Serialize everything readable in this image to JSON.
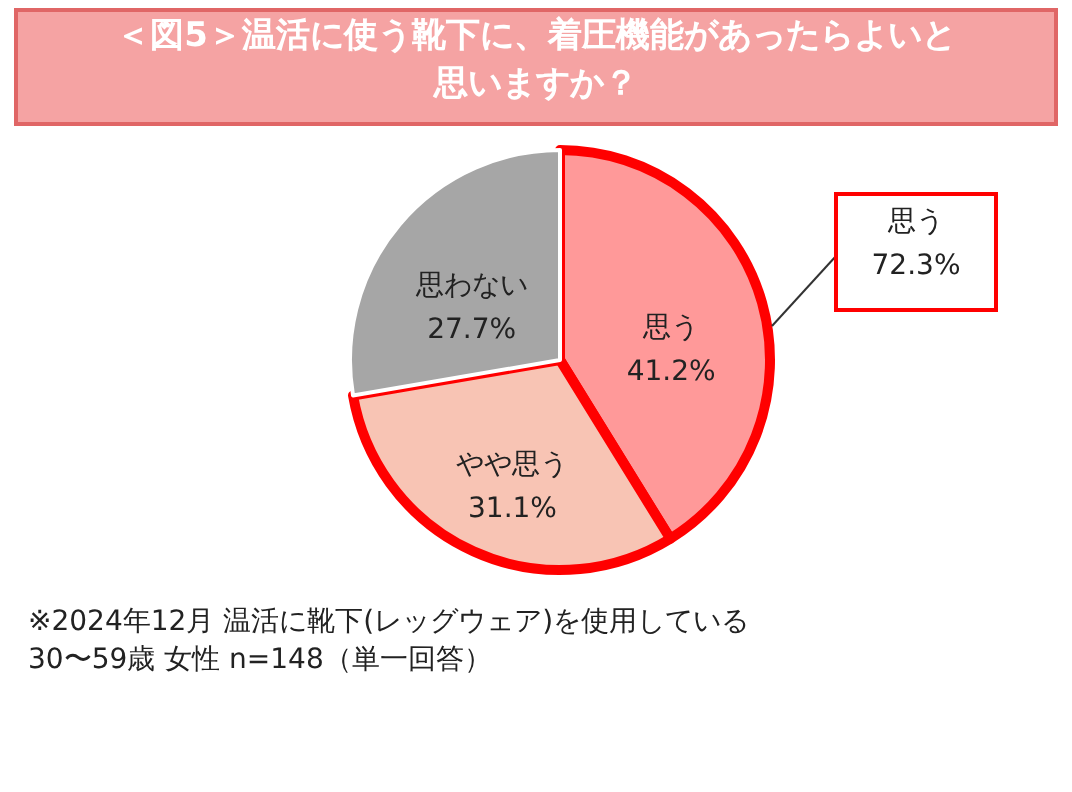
{
  "chart_data": {
    "type": "pie",
    "title": "＜図5＞温活に使う靴下に、着圧機能があったらよいと思いますか？",
    "categories": [
      "思う",
      "やや思う",
      "思わない"
    ],
    "values": [
      41.2,
      31.1,
      27.7
    ],
    "value_labels": [
      "41.2%",
      "31.1%",
      "27.7%"
    ],
    "colors": [
      "#ff9999",
      "#f8c4b4",
      "#a6a6a6"
    ],
    "annotations": [
      "思う\n72.3%",
      "※2024年12月 温活に靴下(レッグウェア)を使用している\n30〜59歳 女性 n=148（単一回答）"
    ]
  }
}
